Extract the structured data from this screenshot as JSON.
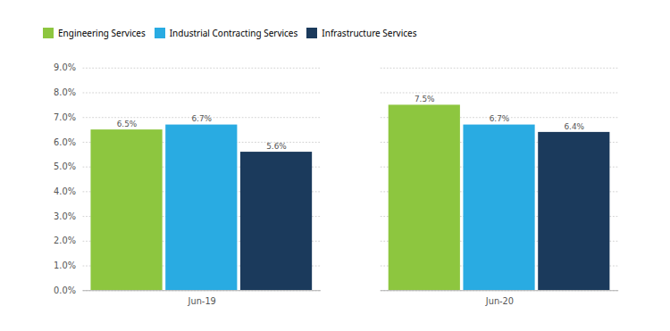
{
  "chart_data": {
    "type": "bar",
    "categories": [
      "Jun-19",
      "Jun-20"
    ],
    "series": [
      {
        "name": "Engineering Services",
        "color": "#8DC63F",
        "values": [
          6.5,
          7.5
        ],
        "value_labels": [
          "6.5%",
          "7.5%"
        ]
      },
      {
        "name": "Industrial Contracting Services",
        "color": "#29ABE2",
        "values": [
          6.7,
          6.7
        ],
        "value_labels": [
          "6.7%",
          "6.7%"
        ]
      },
      {
        "name": "Infrastructure Services",
        "color": "#1B3A5C",
        "values": [
          5.6,
          6.4
        ],
        "value_labels": [
          "5.6%",
          "6.4%"
        ]
      }
    ],
    "ylim": [
      0,
      9.0
    ],
    "yticks": [
      {
        "value": 0.0,
        "label": "0.0%"
      },
      {
        "value": 1.0,
        "label": "1.0%"
      },
      {
        "value": 2.0,
        "label": "2.0%"
      },
      {
        "value": 3.0,
        "label": "3.0%"
      },
      {
        "value": 4.0,
        "label": "4.0%"
      },
      {
        "value": 5.0,
        "label": "5.0%"
      },
      {
        "value": 6.0,
        "label": "6.0%"
      },
      {
        "value": 7.0,
        "label": "7.0%"
      },
      {
        "value": 8.0,
        "label": "8.0%"
      },
      {
        "value": 9.0,
        "label": "9.0%"
      }
    ],
    "grid": true,
    "legend": "upper left",
    "data_labels": true
  }
}
